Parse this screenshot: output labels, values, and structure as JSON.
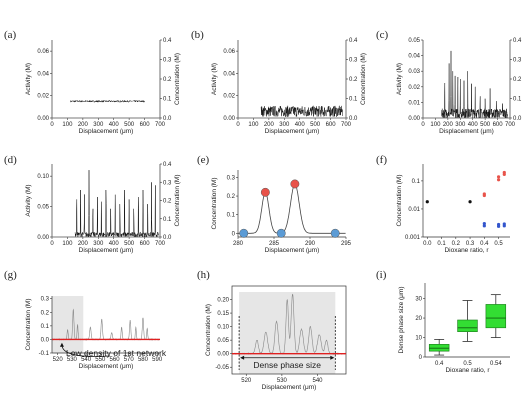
{
  "figure": {
    "panel_labels": [
      "(a)",
      "(b)",
      "(c)",
      "(d)",
      "(e)",
      "(f)",
      "(g)",
      "(h)",
      "(i)"
    ]
  },
  "chart_data": [
    {
      "id": "a",
      "type": "line",
      "xlabel": "Displacement (μm)",
      "ylabel": "Activity (M)",
      "y2label": "Concentration (M)",
      "xlim": [
        0,
        700
      ],
      "ylim": [
        0,
        0.07
      ],
      "y2lim": [
        0,
        0.4
      ],
      "xticks": [
        "0",
        "100",
        "200",
        "300",
        "400",
        "500",
        "600",
        "700"
      ],
      "yticks": [
        "0.00",
        "0.02",
        "0.04",
        "0.06"
      ],
      "y2ticks": [
        "0.0",
        "0.1",
        "0.2",
        "0.3",
        "0.4"
      ],
      "series": [
        {
          "x_range": [
            120,
            600
          ],
          "y_level": 0.015,
          "noise": 0.0008,
          "spikes": []
        }
      ]
    },
    {
      "id": "b",
      "type": "line",
      "xlabel": "Displacement (μm)",
      "ylabel": "Activity (M)",
      "y2label": "Concentration (M)",
      "xlim": [
        0,
        700
      ],
      "ylim": [
        0,
        0.07
      ],
      "y2lim": [
        0,
        0.4
      ],
      "xticks": [
        "0",
        "100",
        "200",
        "300",
        "400",
        "500",
        "600",
        "700"
      ],
      "yticks": [
        "0.00",
        "0.02",
        "0.04",
        "0.06"
      ],
      "y2ticks": [
        "0.0",
        "0.1",
        "0.2",
        "0.3",
        "0.4"
      ],
      "series": [
        {
          "x_range": [
            150,
            680
          ],
          "y_level": 0.006,
          "noise": 0.005,
          "spikes": []
        }
      ]
    },
    {
      "id": "c",
      "type": "line",
      "xlabel": "Displacement (μm)",
      "ylabel": "Activity (M)",
      "y2label": "Concentration (M)",
      "xlim": [
        0,
        700
      ],
      "ylim": [
        0,
        0.05
      ],
      "y2lim": [
        0,
        0.4
      ],
      "xticks": [
        "0",
        "100",
        "200",
        "300",
        "400",
        "500",
        "600",
        "700"
      ],
      "yticks": [
        "0.00",
        "0.01",
        "0.02",
        "0.03",
        "0.04",
        "0.05"
      ],
      "y2ticks": [
        "0.0",
        "0.1",
        "0.2",
        "0.3",
        "0.4"
      ],
      "series": [
        {
          "x_range": [
            150,
            680
          ],
          "y_level": 0.003,
          "noise": 0.003,
          "spikes": [
            [
              175,
              0.029
            ],
            [
              210,
              0.035
            ],
            [
              225,
              0.043
            ],
            [
              240,
              0.03
            ],
            [
              258,
              0.027
            ],
            [
              280,
              0.034
            ],
            [
              300,
              0.025
            ],
            [
              330,
              0.024
            ],
            [
              360,
              0.03
            ],
            [
              390,
              0.022
            ],
            [
              420,
              0.02
            ],
            [
              460,
              0.018
            ],
            [
              500,
              0.016
            ],
            [
              540,
              0.019
            ],
            [
              590,
              0.014
            ],
            [
              640,
              0.012
            ]
          ]
        }
      ]
    },
    {
      "id": "d",
      "type": "line",
      "xlabel": "Displacement (μm)",
      "ylabel": "Activity (M)",
      "y2label": "Concentration (M)",
      "xlim": [
        0,
        700
      ],
      "ylim": [
        0,
        0.12
      ],
      "y2lim": [
        0,
        0.4
      ],
      "xticks": [
        "0",
        "100",
        "200",
        "300",
        "400",
        "500",
        "600",
        "700"
      ],
      "yticks": [
        "0.00",
        "0.05",
        "0.10"
      ],
      "y2ticks": [
        "0.0",
        "0.1",
        "0.2",
        "0.3",
        "0.4"
      ],
      "series": [
        {
          "x_range": [
            150,
            690
          ],
          "y_level": 0.004,
          "noise": 0.004,
          "spikes": [
            [
              160,
              0.08
            ],
            [
              185,
              0.1
            ],
            [
              210,
              0.07
            ],
            [
              240,
              0.11
            ],
            [
              265,
              0.06
            ],
            [
              295,
              0.085
            ],
            [
              320,
              0.075
            ],
            [
              350,
              0.1
            ],
            [
              380,
              0.06
            ],
            [
              410,
              0.09
            ],
            [
              440,
              0.07
            ],
            [
              470,
              0.1
            ],
            [
              500,
              0.08
            ],
            [
              530,
              0.06
            ],
            [
              560,
              0.085
            ],
            [
              590,
              0.1
            ],
            [
              620,
              0.07
            ],
            [
              645,
              0.09
            ],
            [
              670,
              0.11
            ]
          ]
        }
      ]
    },
    {
      "id": "e",
      "type": "line",
      "xlabel": "Displacement (μm)",
      "ylabel": "Concentration (M)",
      "xlim": [
        280,
        295
      ],
      "ylim": [
        -0.02,
        0.34
      ],
      "xticks": [
        "280",
        "285",
        "290",
        "295"
      ],
      "yticks": [
        "0",
        "0.1",
        "0.2",
        "0.3"
      ],
      "series": [
        {
          "peaks": [
            [
              283.8,
              0.22,
              0.5
            ],
            [
              287.9,
              0.265,
              0.6
            ]
          ]
        }
      ],
      "markers": [
        {
          "x": 280.8,
          "y": 0.0,
          "color": "#5b9bd5"
        },
        {
          "x": 283.8,
          "y": 0.22,
          "color": "#e8534a"
        },
        {
          "x": 286.0,
          "y": 0.0,
          "color": "#5b9bd5"
        },
        {
          "x": 287.9,
          "y": 0.265,
          "color": "#e8534a"
        },
        {
          "x": 293.5,
          "y": 0.0,
          "color": "#5b9bd5"
        }
      ]
    },
    {
      "id": "f",
      "type": "scatter",
      "xlabel": "Dioxane ratio, r",
      "ylabel": "Concentration (M)",
      "xlim": [
        -0.03,
        0.58
      ],
      "ylim_log": [
        0.001,
        0.4
      ],
      "log_y": true,
      "xticks": [
        "0.0",
        "0.1",
        "0.2",
        "0.3",
        "0.4",
        "0.5"
      ],
      "yticks": [
        "0.001",
        "0.01",
        "0.1"
      ],
      "series": [
        {
          "color": "#111111",
          "points": [
            [
              0.0,
              0.018
            ],
            [
              0.3,
              0.018
            ]
          ]
        },
        {
          "color": "#e8534a",
          "points": [
            [
              0.4,
              0.03
            ],
            [
              0.4,
              0.034
            ],
            [
              0.5,
              0.11
            ],
            [
              0.5,
              0.14
            ],
            [
              0.54,
              0.17
            ],
            [
              0.54,
              0.2
            ]
          ]
        },
        {
          "color": "#3355cc",
          "points": [
            [
              0.4,
              0.0025
            ],
            [
              0.4,
              0.003
            ],
            [
              0.5,
              0.0024
            ],
            [
              0.5,
              0.0028
            ],
            [
              0.54,
              0.0025
            ],
            [
              0.54,
              0.0029
            ]
          ]
        }
      ]
    },
    {
      "id": "g",
      "type": "line",
      "xlabel": "Displacement (μm)",
      "ylabel": "Concentration (M)",
      "xlim": [
        516,
        592
      ],
      "ylim": [
        -0.1,
        0.32
      ],
      "xticks": [
        "520",
        "530",
        "540",
        "550",
        "560",
        "570",
        "580",
        "590"
      ],
      "yticks": [
        "-0.1",
        "0.0",
        "0.1",
        "0.2",
        "0.3"
      ],
      "shaded_range": [
        516,
        538
      ],
      "annotation": "Low density of 1st network",
      "series": [
        {
          "peaks": [
            [
              527,
              0.07,
              0.4
            ],
            [
              531,
              0.22,
              0.45
            ],
            [
              534,
              0.11,
              0.35
            ],
            [
              543,
              0.09,
              0.5
            ],
            [
              551,
              0.15,
              0.5
            ],
            [
              558,
              0.05,
              0.5
            ],
            [
              565,
              0.09,
              0.4
            ],
            [
              571,
              0.14,
              0.45
            ],
            [
              575,
              0.09,
              0.35
            ],
            [
              580,
              0.16,
              0.45
            ],
            [
              583,
              0.08,
              0.35
            ]
          ]
        }
      ]
    },
    {
      "id": "h",
      "type": "line",
      "xlabel": "Displacement (μm)",
      "ylabel": "Concentration (M)",
      "xlim": [
        516,
        548
      ],
      "ylim": [
        -0.075,
        0.25
      ],
      "xticks": [
        "520",
        "530",
        "540"
      ],
      "yticks": [
        "-0.05",
        "0.00",
        "0.05",
        "0.10",
        "0.15",
        "0.20"
      ],
      "shaded_range": [
        518,
        545
      ],
      "annotation": "Dense phase size",
      "series": [
        {
          "peaks": [
            [
              523,
              0.05,
              0.4
            ],
            [
              525.5,
              0.08,
              0.5
            ],
            [
              528.5,
              0.12,
              0.45
            ],
            [
              531.5,
              0.2,
              0.35
            ],
            [
              533,
              0.22,
              0.4
            ],
            [
              535.5,
              0.09,
              0.5
            ],
            [
              538,
              0.1,
              0.45
            ],
            [
              540.5,
              0.07,
              0.5
            ],
            [
              542.5,
              0.05,
              0.4
            ]
          ]
        }
      ]
    },
    {
      "id": "i",
      "type": "box",
      "xlabel": "Dioxane ratio, r",
      "ylabel": "Dense phase size (μm)",
      "ylim": [
        0,
        38
      ],
      "categories": [
        "0.4",
        "0.5",
        "0.54"
      ],
      "yticks": [
        "0",
        "10",
        "20",
        "30"
      ],
      "color": "#33dd33",
      "boxes": [
        {
          "min": 1,
          "q1": 3,
          "median": 4.5,
          "q3": 6.5,
          "max": 9
        },
        {
          "min": 8,
          "q1": 13,
          "median": 15,
          "q3": 19,
          "max": 29
        },
        {
          "min": 10,
          "q1": 15,
          "median": 20,
          "q3": 27,
          "max": 32
        }
      ]
    }
  ]
}
